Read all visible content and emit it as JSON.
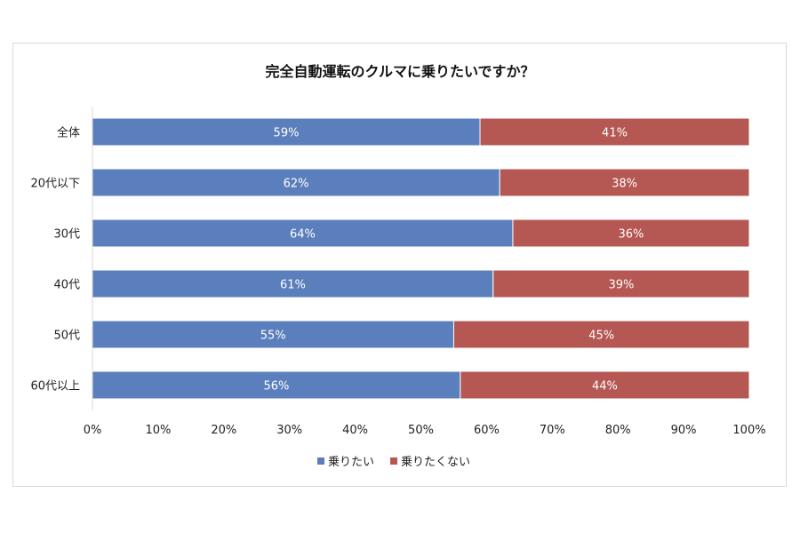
{
  "chart_data": {
    "type": "bar",
    "orientation": "horizontal",
    "stacked": true,
    "title": "完全自動運転のクルマに乗りたいですか？",
    "categories": [
      "全体",
      "20代以下",
      "30代",
      "40代",
      "50代",
      "60代以上"
    ],
    "series": [
      {
        "name": "乗りたい",
        "color": "#5b7fbc",
        "values": [
          59,
          62,
          64,
          61,
          55,
          56
        ]
      },
      {
        "name": "乗りたくない",
        "color": "#b55752",
        "values": [
          41,
          38,
          36,
          39,
          45,
          44
        ]
      }
    ],
    "xlim": [
      0,
      100
    ],
    "xticks": [
      "0%",
      "10%",
      "20%",
      "30%",
      "40%",
      "50%",
      "60%",
      "70%",
      "80%",
      "90%",
      "100%"
    ],
    "grid": false,
    "legend": "bottom",
    "value_suffix": "%"
  }
}
